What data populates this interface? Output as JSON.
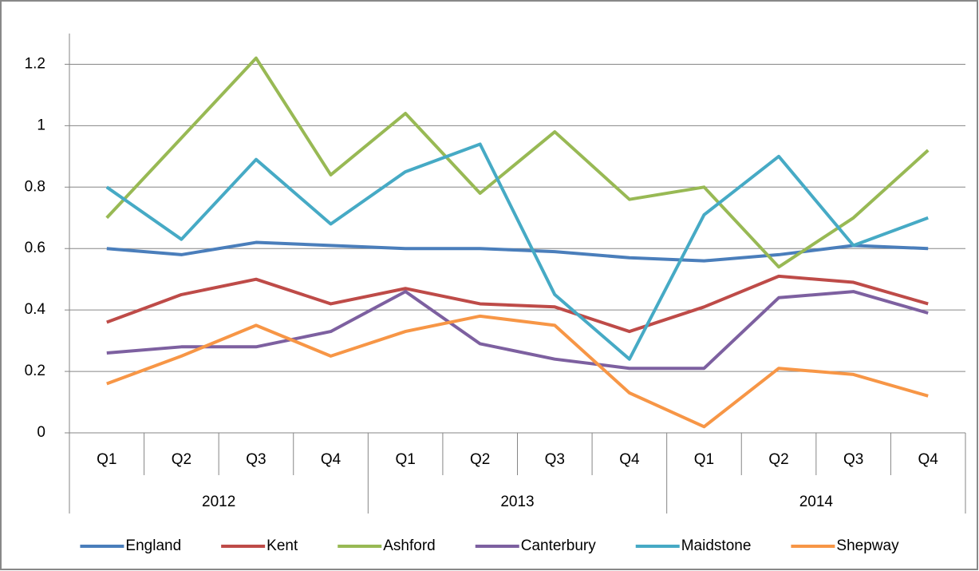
{
  "chart_data": {
    "type": "line",
    "categories": [
      "Q1",
      "Q2",
      "Q3",
      "Q4",
      "Q1",
      "Q2",
      "Q3",
      "Q4",
      "Q1",
      "Q2",
      "Q3",
      "Q4"
    ],
    "groups": [
      "2012",
      "2013",
      "2014"
    ],
    "series": [
      {
        "name": "England",
        "color": "#4a7ebb",
        "values": [
          0.6,
          0.58,
          0.62,
          0.61,
          0.6,
          0.6,
          0.59,
          0.57,
          0.56,
          0.58,
          0.61,
          0.6
        ]
      },
      {
        "name": "Kent",
        "color": "#be4b48",
        "values": [
          0.36,
          0.45,
          0.5,
          0.42,
          0.47,
          0.42,
          0.41,
          0.33,
          0.41,
          0.51,
          0.49,
          0.42
        ]
      },
      {
        "name": "Ashford",
        "color": "#98b954",
        "values": [
          0.7,
          0.96,
          1.22,
          0.84,
          1.04,
          0.78,
          0.98,
          0.76,
          0.8,
          0.54,
          0.7,
          0.92
        ]
      },
      {
        "name": "Canterbury",
        "color": "#7d60a0",
        "values": [
          0.26,
          0.28,
          0.28,
          0.33,
          0.46,
          0.29,
          0.24,
          0.21,
          0.21,
          0.44,
          0.46,
          0.39
        ]
      },
      {
        "name": "Maidstone",
        "color": "#46aac5",
        "values": [
          0.8,
          0.63,
          0.89,
          0.68,
          0.85,
          0.94,
          0.45,
          0.24,
          0.71,
          0.9,
          0.61,
          0.7
        ]
      },
      {
        "name": "Shepway",
        "color": "#f79646",
        "values": [
          0.16,
          0.25,
          0.35,
          0.25,
          0.33,
          0.38,
          0.35,
          0.13,
          0.02,
          0.21,
          0.19,
          0.12
        ]
      }
    ],
    "ylim": [
      0,
      1.3
    ],
    "yticks": [
      0,
      0.2,
      0.4,
      0.6,
      0.8,
      1,
      1.2
    ],
    "grid": true,
    "legend": "bottom"
  }
}
